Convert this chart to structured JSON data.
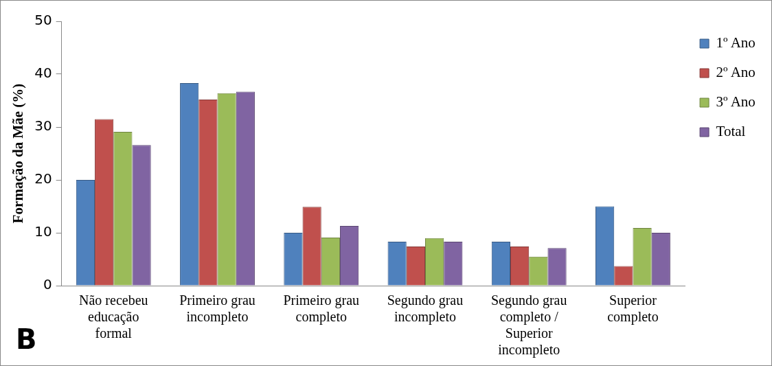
{
  "chart_data": {
    "type": "bar",
    "ylabel": "Formação da Mãe (%)",
    "categories": [
      "Não recebeu\neducação\nformal",
      "Primeiro grau\nincompleto",
      "Primeiro grau\ncompleto",
      "Segundo grau\nincompleto",
      "Segundo grau\ncompleto /\nSuperior\nincompleto",
      "Superior\ncompleto"
    ],
    "series": [
      {
        "name": "1º Ano",
        "color": "#4f81bd",
        "values": [
          20.0,
          38.3,
          10.0,
          8.3,
          8.3,
          15.0
        ]
      },
      {
        "name": "2º Ano",
        "color": "#c0504d",
        "values": [
          31.5,
          35.2,
          14.9,
          7.4,
          7.4,
          3.7
        ]
      },
      {
        "name": "3º Ano",
        "color": "#9bbb59",
        "values": [
          29.1,
          36.4,
          9.1,
          9.0,
          5.5,
          10.9
        ]
      },
      {
        "name": "Total",
        "color": "#8064a2",
        "values": [
          26.6,
          36.7,
          11.3,
          8.3,
          7.1,
          10.0
        ]
      }
    ],
    "ylim": [
      0,
      50
    ],
    "yticks": [
      0,
      10,
      20,
      30,
      40,
      50
    ],
    "grid": false,
    "legend": "top right",
    "annotations": [
      "B"
    ]
  }
}
